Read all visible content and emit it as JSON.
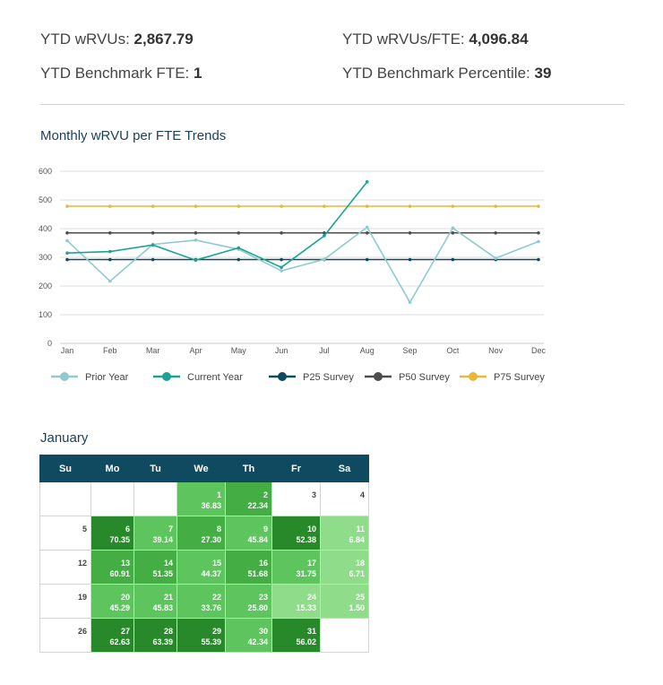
{
  "summary": {
    "ytd_wrvus_label": "YTD wRVUs:",
    "ytd_wrvus_value": "2,867.79",
    "ytd_wrvus_fte_label": "YTD wRVUs/FTE:",
    "ytd_wrvus_fte_value": "4,096.84",
    "benchmark_fte_label": "YTD Benchmark FTE:",
    "benchmark_fte_value": "1",
    "benchmark_pct_label": "YTD Benchmark Percentile:",
    "benchmark_pct_value": "39"
  },
  "chart_title": "Monthly wRVU per FTE Trends",
  "chart_data": {
    "type": "line",
    "categories": [
      "Jan",
      "Feb",
      "Mar",
      "Apr",
      "May",
      "Jun",
      "Jul",
      "Aug",
      "Sep",
      "Oct",
      "Nov",
      "Dec"
    ],
    "ylim": [
      0,
      600
    ],
    "yticks": [
      0,
      100,
      200,
      300,
      400,
      500,
      600
    ],
    "grid": true,
    "legend_position": "bottom",
    "series": [
      {
        "name": "Prior Year",
        "color": "#8fcad0",
        "values": [
          358,
          217,
          345,
          360,
          328,
          253,
          293,
          405,
          143,
          402,
          297,
          355
        ]
      },
      {
        "name": "Current Year",
        "color": "#1aa394",
        "values": [
          315,
          320,
          343,
          290,
          333,
          265,
          375,
          563,
          null,
          null,
          null,
          null
        ]
      },
      {
        "name": "P25 Survey",
        "color": "#0e4a5e",
        "values": [
          292,
          292,
          292,
          292,
          292,
          292,
          292,
          292,
          292,
          292,
          292,
          292
        ]
      },
      {
        "name": "P50 Survey",
        "color": "#4d4d4d",
        "values": [
          385,
          385,
          385,
          385,
          385,
          385,
          385,
          385,
          385,
          385,
          385,
          385
        ]
      },
      {
        "name": "P75 Survey",
        "color": "#e8b73a",
        "values": [
          478,
          478,
          478,
          478,
          478,
          478,
          478,
          478,
          478,
          478,
          478,
          478
        ]
      }
    ]
  },
  "calendar": {
    "title": "January",
    "weekdays": [
      "Su",
      "Mo",
      "Tu",
      "We",
      "Th",
      "Fr",
      "Sa"
    ],
    "weeks": [
      [
        null,
        null,
        null,
        {
          "day": "1",
          "value": "36.83",
          "color": "#5ec55e"
        },
        {
          "day": "2",
          "value": "22.34",
          "color": "#44ad44"
        },
        {
          "day": "3"
        },
        {
          "day": "4"
        }
      ],
      [
        {
          "day": "5"
        },
        {
          "day": "6",
          "value": "70.35",
          "color": "#27892a"
        },
        {
          "day": "7",
          "value": "39.14",
          "color": "#5ec55e"
        },
        {
          "day": "8",
          "value": "27.30",
          "color": "#44ad44"
        },
        {
          "day": "9",
          "value": "45.84",
          "color": "#5ec55e"
        },
        {
          "day": "10",
          "value": "52.38",
          "color": "#27892a"
        },
        {
          "day": "11",
          "value": "6.84",
          "color": "#8fdc8a"
        }
      ],
      [
        {
          "day": "12"
        },
        {
          "day": "13",
          "value": "60.91",
          "color": "#44ad44"
        },
        {
          "day": "14",
          "value": "51.35",
          "color": "#44ad44"
        },
        {
          "day": "15",
          "value": "44.37",
          "color": "#5ec55e"
        },
        {
          "day": "16",
          "value": "51.68",
          "color": "#44ad44"
        },
        {
          "day": "17",
          "value": "31.75",
          "color": "#5ec55e"
        },
        {
          "day": "18",
          "value": "6.71",
          "color": "#8fdc8a"
        }
      ],
      [
        {
          "day": "19"
        },
        {
          "day": "20",
          "value": "45.29",
          "color": "#5ec55e"
        },
        {
          "day": "21",
          "value": "45.83",
          "color": "#5ec55e"
        },
        {
          "day": "22",
          "value": "33.76",
          "color": "#5ec55e"
        },
        {
          "day": "23",
          "value": "25.80",
          "color": "#5ec55e"
        },
        {
          "day": "24",
          "value": "15.33",
          "color": "#8fdc8a"
        },
        {
          "day": "25",
          "value": "1.50",
          "color": "#8fdc8a"
        }
      ],
      [
        {
          "day": "26"
        },
        {
          "day": "27",
          "value": "62.63",
          "color": "#27892a"
        },
        {
          "day": "28",
          "value": "63.39",
          "color": "#27892a"
        },
        {
          "day": "29",
          "value": "55.39",
          "color": "#27892a"
        },
        {
          "day": "30",
          "value": "42.34",
          "color": "#5ec55e"
        },
        {
          "day": "31",
          "value": "56.02",
          "color": "#27892a"
        },
        null
      ]
    ]
  }
}
